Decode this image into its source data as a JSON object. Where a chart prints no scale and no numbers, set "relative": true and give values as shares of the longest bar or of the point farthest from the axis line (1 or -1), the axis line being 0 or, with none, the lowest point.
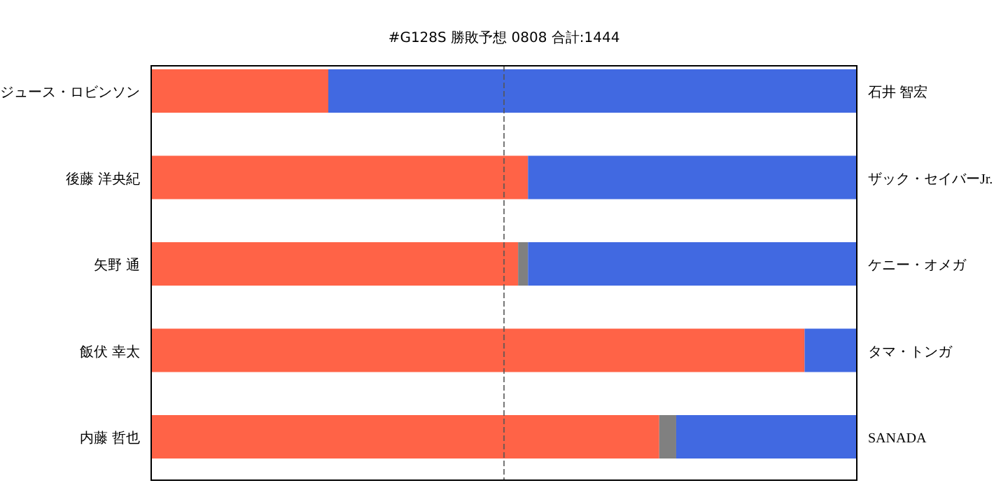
{
  "chart_data": {
    "type": "bar",
    "orientation": "horizontal",
    "stacked": true,
    "relative": true,
    "title": "#G128S 勝敗予想 0808 合計:1444",
    "categories": [
      "ジュース・ロビンソン",
      "後藤 洋央紀",
      "矢野 通",
      "飯伏 幸太",
      "内藤 哲也"
    ],
    "series": [
      {
        "color": "#ff6347",
        "values": [
          0.251,
          0.534,
          0.52,
          0.926,
          0.72
        ]
      },
      {
        "color": "#808080",
        "values": [
          0,
          0,
          0.014,
          0,
          0.024
        ]
      },
      {
        "color": "#4169e1",
        "values": [
          0.749,
          0.466,
          0.466,
          0.074,
          0.256
        ]
      }
    ],
    "annotations": [
      "石井 智宏",
      "ザック・セイバーJr.",
      "ケニー・オメガ",
      "タマ・トンガ",
      "SANADA"
    ],
    "ref_lines": [
      {
        "axis": "x",
        "value": 0.5,
        "color": "#555555",
        "line_style": "dashed"
      }
    ],
    "grid": false
  }
}
